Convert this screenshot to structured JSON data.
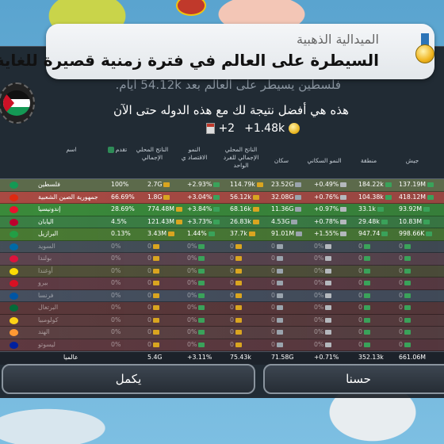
{
  "toast": {
    "subtitle": "الميدالية الذهبية",
    "title": "السيطرة على العالم في فترة زمنية قصيرة للغاية"
  },
  "message": {
    "faded": "فلسطين يسيطر على العالم بعد 54.12k أيام.",
    "best": "هذه هي أفضل نتيجة لك مع هذه الدوله حتى الآن"
  },
  "stats": {
    "coins": "+1.48k",
    "days": "+2"
  },
  "table": {
    "headers": {
      "name": "اسم",
      "progress": "تقدم",
      "gdp": "الناتج المحلي الإجمالي",
      "growth": "النمو الاقتصاد ي",
      "gdp_pc": "الناتج المحلي الإجمالي للفرد الواحد",
      "pop": "سكان",
      "pop_growth": "النمو السكاني",
      "area": "منطقة",
      "army": "جيش"
    },
    "rows": [
      {
        "name": "فلسطين",
        "progress": "100%",
        "gdp": "2.7G",
        "growth": "+2.93%",
        "gdppc": "114.79k",
        "pop": "23.52G",
        "popg": "+0.49%",
        "area": "184.22k",
        "army": "137.19M",
        "flag": "#149954",
        "band": "#5b8a2f"
      },
      {
        "name": "جمهورية الصين الشعبية",
        "progress": "66.69%",
        "gdp": "1.8G",
        "growth": "+3.04%",
        "gdppc": "56.12k",
        "pop": "32.08G",
        "popg": "+0.76%",
        "area": "104.38k",
        "army": "418.12M",
        "flag": "#de2910",
        "band": "#a94a43"
      },
      {
        "name": "إندونيسيا",
        "progress": "28.69%",
        "gdp": "774.48M",
        "growth": "+3.84%",
        "gdppc": "68.16k",
        "pop": "11.36G",
        "popg": "+0.97%",
        "area": "33.1k",
        "army": "93.92M",
        "flag": "#e8112d",
        "band": "#3a8a3a"
      },
      {
        "name": "اليابان",
        "progress": "4.5%",
        "gdp": "121.43M",
        "growth": "+3.73%",
        "gdppc": "26.83k",
        "pop": "4.53G",
        "popg": "+0.78%",
        "area": "29.48k",
        "army": "10.83M",
        "flag": "#bc002d",
        "band": "#3b7f44"
      },
      {
        "name": "البرازيل",
        "progress": "0.13%",
        "gdp": "3.43M",
        "growth": "1.44%",
        "gdppc": "37.7k",
        "pop": "91.01M",
        "popg": "+1.55%",
        "area": "947.74",
        "army": "998.66K",
        "flag": "#229e45",
        "band": "#497a33"
      },
      {
        "name": "السويد",
        "progress": "0%",
        "gdp": "0",
        "growth": "0%",
        "gdppc": "0",
        "pop": "0",
        "popg": "0%",
        "area": "0",
        "army": "0",
        "flag": "#006aa7",
        "band": "#4d5761"
      },
      {
        "name": "بولندا",
        "progress": "0%",
        "gdp": "0",
        "growth": "0%",
        "gdppc": "0",
        "pop": "0",
        "popg": "0%",
        "area": "0",
        "army": "0",
        "flag": "#dc143c",
        "band": "#6b4b55"
      },
      {
        "name": "أوغندا",
        "progress": "0%",
        "gdp": "0",
        "growth": "0%",
        "gdppc": "0",
        "pop": "0",
        "popg": "0%",
        "area": "0",
        "army": "0",
        "flag": "#fcdc04",
        "band": "#5e5a3a"
      },
      {
        "name": "بيرو",
        "progress": "0%",
        "gdp": "0",
        "growth": "0%",
        "gdppc": "0",
        "pop": "0",
        "popg": "0%",
        "area": "0",
        "army": "0",
        "flag": "#d91023",
        "band": "#6e3f47"
      },
      {
        "name": "فرنسا",
        "progress": "0%",
        "gdp": "0",
        "growth": "0%",
        "gdppc": "0",
        "pop": "0",
        "popg": "0%",
        "area": "0",
        "army": "0",
        "flag": "#0055a4",
        "band": "#4f5869"
      },
      {
        "name": "البرتغال",
        "progress": "0%",
        "gdp": "0",
        "growth": "0%",
        "gdppc": "0",
        "pop": "0",
        "popg": "0%",
        "area": "0",
        "army": "0",
        "flag": "#046a38",
        "band": "#6a3b3b"
      },
      {
        "name": "كولومبيا",
        "progress": "0%",
        "gdp": "0",
        "growth": "0%",
        "gdppc": "0",
        "pop": "0",
        "popg": "0%",
        "area": "0",
        "army": "0",
        "flag": "#fcd116",
        "band": "#6b4040"
      },
      {
        "name": "الهند",
        "progress": "0%",
        "gdp": "0",
        "growth": "0%",
        "gdppc": "0",
        "pop": "0",
        "popg": "0%",
        "area": "0",
        "army": "0",
        "flag": "#ff9933",
        "band": "#6b4646"
      },
      {
        "name": "ليسوتو",
        "progress": "0%",
        "gdp": "0",
        "growth": "0%",
        "gdppc": "0",
        "pop": "0",
        "popg": "0%",
        "area": "0",
        "army": "0",
        "flag": "#00209f",
        "band": "#6d3c42"
      }
    ],
    "total": {
      "name": "عالميا",
      "gdp": "5.4G",
      "growth": "+3.11%",
      "gdppc": "75.43k",
      "pop": "71.58G",
      "popg": "+0.71%",
      "area": "352.13k",
      "army": "661.06M"
    }
  },
  "buttons": {
    "continue": "يكمل",
    "ok": "حسنا"
  }
}
